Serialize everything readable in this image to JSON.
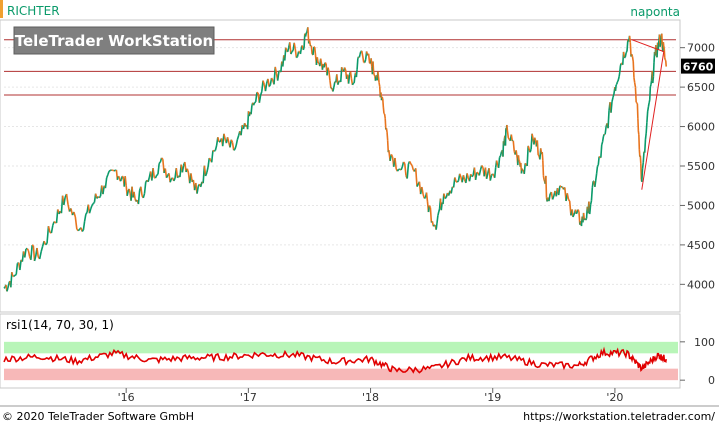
{
  "header": {
    "instrument": "RICHTER",
    "period": "naponta",
    "brand": "TeleTrader WorkStation"
  },
  "footer": {
    "copyright": "© 2020 TeleTrader Software GmbH",
    "url": "https://workstation.teletrader.com/"
  },
  "colors": {
    "up": "#0a9a6a",
    "down": "#e8741e",
    "hline": "#b03030",
    "trend": "#e02020",
    "rsi_line": "#e00000",
    "rsi_upper_band": "#b8f5b8",
    "rsi_lower_band": "#f7b8b8",
    "accent_bar": "#f0a030"
  },
  "chart_data": [
    {
      "type": "line",
      "series": [
        {
          "values": [
            {
              "t": 2015.0,
              "v": 3950
            },
            {
              "t": 2015.08,
              "v": 4100
            },
            {
              "t": 2015.18,
              "v": 4450
            },
            {
              "t": 2015.28,
              "v": 4350
            },
            {
              "t": 2015.4,
              "v": 4750
            },
            {
              "t": 2015.5,
              "v": 5100
            },
            {
              "t": 2015.62,
              "v": 4700
            },
            {
              "t": 2015.72,
              "v": 5000
            },
            {
              "t": 2015.82,
              "v": 5250
            },
            {
              "t": 2015.92,
              "v": 5450
            },
            {
              "t": 2016.0,
              "v": 5250
            },
            {
              "t": 2016.08,
              "v": 5050
            },
            {
              "t": 2016.18,
              "v": 5300
            },
            {
              "t": 2016.28,
              "v": 5550
            },
            {
              "t": 2016.38,
              "v": 5350
            },
            {
              "t": 2016.48,
              "v": 5550
            },
            {
              "t": 2016.58,
              "v": 5150
            },
            {
              "t": 2016.68,
              "v": 5600
            },
            {
              "t": 2016.78,
              "v": 5850
            },
            {
              "t": 2016.88,
              "v": 5700
            },
            {
              "t": 2016.98,
              "v": 6000
            },
            {
              "t": 2017.05,
              "v": 6300
            },
            {
              "t": 2017.15,
              "v": 6550
            },
            {
              "t": 2017.25,
              "v": 6700
            },
            {
              "t": 2017.33,
              "v": 7000
            },
            {
              "t": 2017.42,
              "v": 6950
            },
            {
              "t": 2017.48,
              "v": 7200
            },
            {
              "t": 2017.55,
              "v": 6900
            },
            {
              "t": 2017.62,
              "v": 6750
            },
            {
              "t": 2017.7,
              "v": 6500
            },
            {
              "t": 2017.78,
              "v": 6700
            },
            {
              "t": 2017.86,
              "v": 6550
            },
            {
              "t": 2017.92,
              "v": 6950
            },
            {
              "t": 2018.0,
              "v": 6800
            },
            {
              "t": 2018.05,
              "v": 6650
            },
            {
              "t": 2018.1,
              "v": 6350
            },
            {
              "t": 2018.15,
              "v": 5700
            },
            {
              "t": 2018.25,
              "v": 5450
            },
            {
              "t": 2018.35,
              "v": 5450
            },
            {
              "t": 2018.45,
              "v": 5100
            },
            {
              "t": 2018.53,
              "v": 4750
            },
            {
              "t": 2018.6,
              "v": 5150
            },
            {
              "t": 2018.7,
              "v": 5300
            },
            {
              "t": 2018.8,
              "v": 5350
            },
            {
              "t": 2018.9,
              "v": 5450
            },
            {
              "t": 2019.0,
              "v": 5400
            },
            {
              "t": 2019.08,
              "v": 5700
            },
            {
              "t": 2019.12,
              "v": 5950
            },
            {
              "t": 2019.2,
              "v": 5600
            },
            {
              "t": 2019.25,
              "v": 5450
            },
            {
              "t": 2019.33,
              "v": 5850
            },
            {
              "t": 2019.4,
              "v": 5650
            },
            {
              "t": 2019.45,
              "v": 5100
            },
            {
              "t": 2019.55,
              "v": 5250
            },
            {
              "t": 2019.65,
              "v": 4950
            },
            {
              "t": 2019.72,
              "v": 4800
            },
            {
              "t": 2019.78,
              "v": 4900
            },
            {
              "t": 2019.85,
              "v": 5400
            },
            {
              "t": 2019.92,
              "v": 5900
            },
            {
              "t": 2020.0,
              "v": 6500
            },
            {
              "t": 2020.05,
              "v": 6800
            },
            {
              "t": 2020.12,
              "v": 7150
            },
            {
              "t": 2020.18,
              "v": 6300
            },
            {
              "t": 2020.22,
              "v": 5300
            },
            {
              "t": 2020.28,
              "v": 6300
            },
            {
              "t": 2020.33,
              "v": 6900
            },
            {
              "t": 2020.38,
              "v": 7150
            },
            {
              "t": 2020.42,
              "v": 6760
            }
          ]
        }
      ],
      "last_value_label": "6760",
      "y_ticks": [
        "4000",
        "4500",
        "5000",
        "5500",
        "6000",
        "6500",
        "7000"
      ],
      "x_ticks": [
        "'16",
        "'17",
        "'18",
        "'19",
        "'20"
      ],
      "ylim": [
        3700,
        7300
      ],
      "xlim": [
        2015.0,
        2020.5
      ],
      "horizontal_levels": [
        7100,
        6700,
        6400
      ],
      "trend_line": [
        {
          "t": 2020.22,
          "v": 5200
        },
        {
          "t": 2020.4,
          "v": 6950
        },
        {
          "t": 2020.14,
          "v": 7100
        }
      ]
    },
    {
      "type": "line",
      "title": "rsi1(14, 70, 30, 1)",
      "y_ticks": [
        "0",
        "100"
      ],
      "ylim": [
        -10,
        110
      ],
      "bands": [
        30,
        70
      ],
      "series": [
        {
          "values": [
            {
              "t": 2015.0,
              "v": 55
            },
            {
              "t": 2015.3,
              "v": 62
            },
            {
              "t": 2015.6,
              "v": 50
            },
            {
              "t": 2015.9,
              "v": 70
            },
            {
              "t": 2016.2,
              "v": 52
            },
            {
              "t": 2016.5,
              "v": 58
            },
            {
              "t": 2016.8,
              "v": 60
            },
            {
              "t": 2017.1,
              "v": 68
            },
            {
              "t": 2017.4,
              "v": 65
            },
            {
              "t": 2017.7,
              "v": 48
            },
            {
              "t": 2018.0,
              "v": 55
            },
            {
              "t": 2018.2,
              "v": 25
            },
            {
              "t": 2018.5,
              "v": 30
            },
            {
              "t": 2018.8,
              "v": 58
            },
            {
              "t": 2019.1,
              "v": 60
            },
            {
              "t": 2019.4,
              "v": 40
            },
            {
              "t": 2019.7,
              "v": 38
            },
            {
              "t": 2019.9,
              "v": 72
            },
            {
              "t": 2020.1,
              "v": 70
            },
            {
              "t": 2020.22,
              "v": 30
            },
            {
              "t": 2020.35,
              "v": 65
            },
            {
              "t": 2020.42,
              "v": 55
            }
          ]
        }
      ]
    }
  ]
}
